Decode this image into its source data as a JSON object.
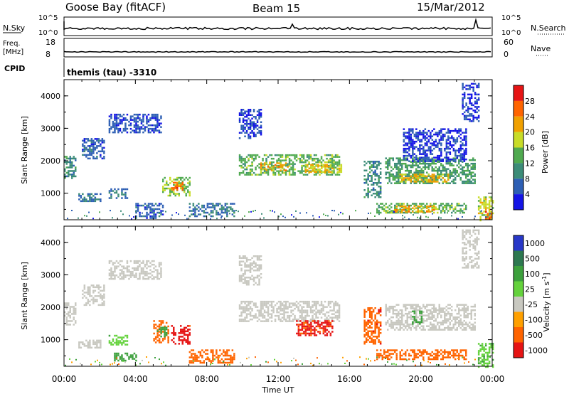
{
  "header": {
    "station": "Goose Bay (fitACF)",
    "beam": "Beam 15",
    "date": "15/Mar/2012"
  },
  "noise_panel": {
    "left_label": "N.Sky",
    "right_label": "N.Search",
    "left_ticks": [
      "10^5",
      "10^0"
    ],
    "right_ticks": [
      "10^5",
      "10^0"
    ]
  },
  "freq_panel": {
    "left_label_line1": "Freq.",
    "left_label_line2": "[MHz]",
    "right_label": "Nave",
    "left_ticks": [
      "18",
      "8"
    ],
    "right_ticks": [
      "60",
      "0"
    ]
  },
  "cpid": {
    "label": "CPID",
    "text": "themis (tau) -3310"
  },
  "chart_data": [
    {
      "type": "heatmap",
      "name": "power",
      "ylabel": "Slant Range [km]",
      "ylim": [
        180,
        4500
      ],
      "xlim": [
        0,
        24
      ],
      "y_ticks": [
        "1000",
        "2000",
        "3000",
        "4000"
      ],
      "colorbar_label": "Power [dB]",
      "colorbar_ticks": [
        "4",
        "8",
        "12",
        "16",
        "20",
        "24",
        "28"
      ],
      "colorbar_colors": [
        "#1414e6",
        "#2d5fb4",
        "#3c8c78",
        "#50aa50",
        "#c8dc28",
        "#f0a000",
        "#ff6400",
        "#e61414"
      ],
      "cells": [
        {
          "t": [
            0.0,
            0.6
          ],
          "r": [
            1450,
            2150
          ],
          "v": 10
        },
        {
          "t": [
            1.0,
            2.2
          ],
          "r": [
            2050,
            2700
          ],
          "v": 6
        },
        {
          "t": [
            2.5,
            5.4
          ],
          "r": [
            2900,
            3450
          ],
          "v": 5
        },
        {
          "t": [
            0.8,
            2.0
          ],
          "r": [
            750,
            1000
          ],
          "v": 8
        },
        {
          "t": [
            2.5,
            3.5
          ],
          "r": [
            850,
            1150
          ],
          "v": 8
        },
        {
          "t": [
            5.5,
            7.0
          ],
          "r": [
            900,
            1500
          ],
          "v": 16
        },
        {
          "t": [
            6.0,
            6.6
          ],
          "r": [
            1100,
            1350
          ],
          "v": 26
        },
        {
          "t": [
            7.0,
            9.5
          ],
          "r": [
            300,
            700
          ],
          "v": 8
        },
        {
          "t": [
            4.0,
            5.5
          ],
          "r": [
            250,
            700
          ],
          "v": 6
        },
        {
          "t": [
            9.8,
            15.4
          ],
          "r": [
            1550,
            2200
          ],
          "v": 14
        },
        {
          "t": [
            11.0,
            12.5
          ],
          "r": [
            1700,
            1950
          ],
          "v": 22
        },
        {
          "t": [
            13.5,
            15.5
          ],
          "r": [
            1650,
            1900
          ],
          "v": 20
        },
        {
          "t": [
            9.8,
            11.0
          ],
          "r": [
            2700,
            3600
          ],
          "v": 4
        },
        {
          "t": [
            16.8,
            17.7
          ],
          "r": [
            900,
            2000
          ],
          "v": 10
        },
        {
          "t": [
            17.5,
            22.5
          ],
          "r": [
            400,
            700
          ],
          "v": 14
        },
        {
          "t": [
            18.5,
            20.8
          ],
          "r": [
            430,
            620
          ],
          "v": 22
        },
        {
          "t": [
            18.0,
            23.0
          ],
          "r": [
            1300,
            2100
          ],
          "v": 12
        },
        {
          "t": [
            18.8,
            21.5
          ],
          "r": [
            1350,
            1600
          ],
          "v": 21
        },
        {
          "t": [
            19.0,
            22.5
          ],
          "r": [
            2000,
            3000
          ],
          "v": 4
        },
        {
          "t": [
            22.3,
            23.2
          ],
          "r": [
            3200,
            4400
          ],
          "v": 4
        },
        {
          "t": [
            23.2,
            24.0
          ],
          "r": [
            180,
            900
          ],
          "v": 18
        },
        {
          "t": [
            23.5,
            23.9
          ],
          "r": [
            200,
            450
          ],
          "v": 28
        }
      ]
    },
    {
      "type": "heatmap",
      "name": "velocity",
      "xlabel": "Time UT",
      "ylabel": "Slant Range [km]",
      "ylim": [
        180,
        4500
      ],
      "xlim": [
        0,
        24
      ],
      "x_ticks": [
        "00:00",
        "04:00",
        "08:00",
        "12:00",
        "16:00",
        "20:00",
        "00:00"
      ],
      "y_ticks": [
        "1000",
        "2000",
        "3000",
        "4000"
      ],
      "colorbar_label": "Velocity [m s",
      "colorbar_label_sup": "-1",
      "colorbar_label_end": "]",
      "colorbar_ticks": [
        "1000",
        "500",
        "100",
        "25",
        "-25",
        "-100",
        "-500",
        "-1000"
      ],
      "colorbar_colors": [
        "#2838c8",
        "#2d7850",
        "#3ca03c",
        "#64d23c",
        "#c8c8c0",
        "#ffa000",
        "#ff6400",
        "#e61414"
      ],
      "cells": [
        {
          "t": [
            0.0,
            0.6
          ],
          "r": [
            1450,
            2150
          ],
          "v": 0
        },
        {
          "t": [
            1.0,
            2.2
          ],
          "r": [
            2050,
            2700
          ],
          "v": 0
        },
        {
          "t": [
            2.5,
            5.4
          ],
          "r": [
            2900,
            3450
          ],
          "v": 0
        },
        {
          "t": [
            0.8,
            2.0
          ],
          "r": [
            750,
            1000
          ],
          "v": 0
        },
        {
          "t": [
            2.5,
            3.5
          ],
          "r": [
            850,
            1150
          ],
          "v": 80
        },
        {
          "t": [
            5.0,
            5.8
          ],
          "r": [
            900,
            1600
          ],
          "v": -300
        },
        {
          "t": [
            6.0,
            7.0
          ],
          "r": [
            900,
            1450
          ],
          "v": -700
        },
        {
          "t": [
            5.2,
            5.7
          ],
          "r": [
            1100,
            1400
          ],
          "v": 150
        },
        {
          "t": [
            7.0,
            9.5
          ],
          "r": [
            300,
            700
          ],
          "v": -150
        },
        {
          "t": [
            2.8,
            4.0
          ],
          "r": [
            350,
            600
          ],
          "v": 150
        },
        {
          "t": [
            9.8,
            15.4
          ],
          "r": [
            1550,
            2200
          ],
          "v": 0
        },
        {
          "t": [
            13.0,
            15.0
          ],
          "r": [
            1150,
            1600
          ],
          "v": -600
        },
        {
          "t": [
            9.8,
            11.0
          ],
          "r": [
            2700,
            3600
          ],
          "v": 0
        },
        {
          "t": [
            16.8,
            17.7
          ],
          "r": [
            900,
            2000
          ],
          "v": -400
        },
        {
          "t": [
            17.5,
            22.5
          ],
          "r": [
            400,
            700
          ],
          "v": -300
        },
        {
          "t": [
            18.0,
            23.0
          ],
          "r": [
            1300,
            2100
          ],
          "v": 0
        },
        {
          "t": [
            19.5,
            20.0
          ],
          "r": [
            1500,
            1900
          ],
          "v": 150
        },
        {
          "t": [
            22.3,
            23.2
          ],
          "r": [
            3200,
            4400
          ],
          "v": 0
        },
        {
          "t": [
            23.2,
            24.0
          ],
          "r": [
            180,
            900
          ],
          "v": 80
        }
      ]
    }
  ],
  "colors": {
    "axis": "#000000",
    "ground_scatter": "#a0a0a0"
  }
}
